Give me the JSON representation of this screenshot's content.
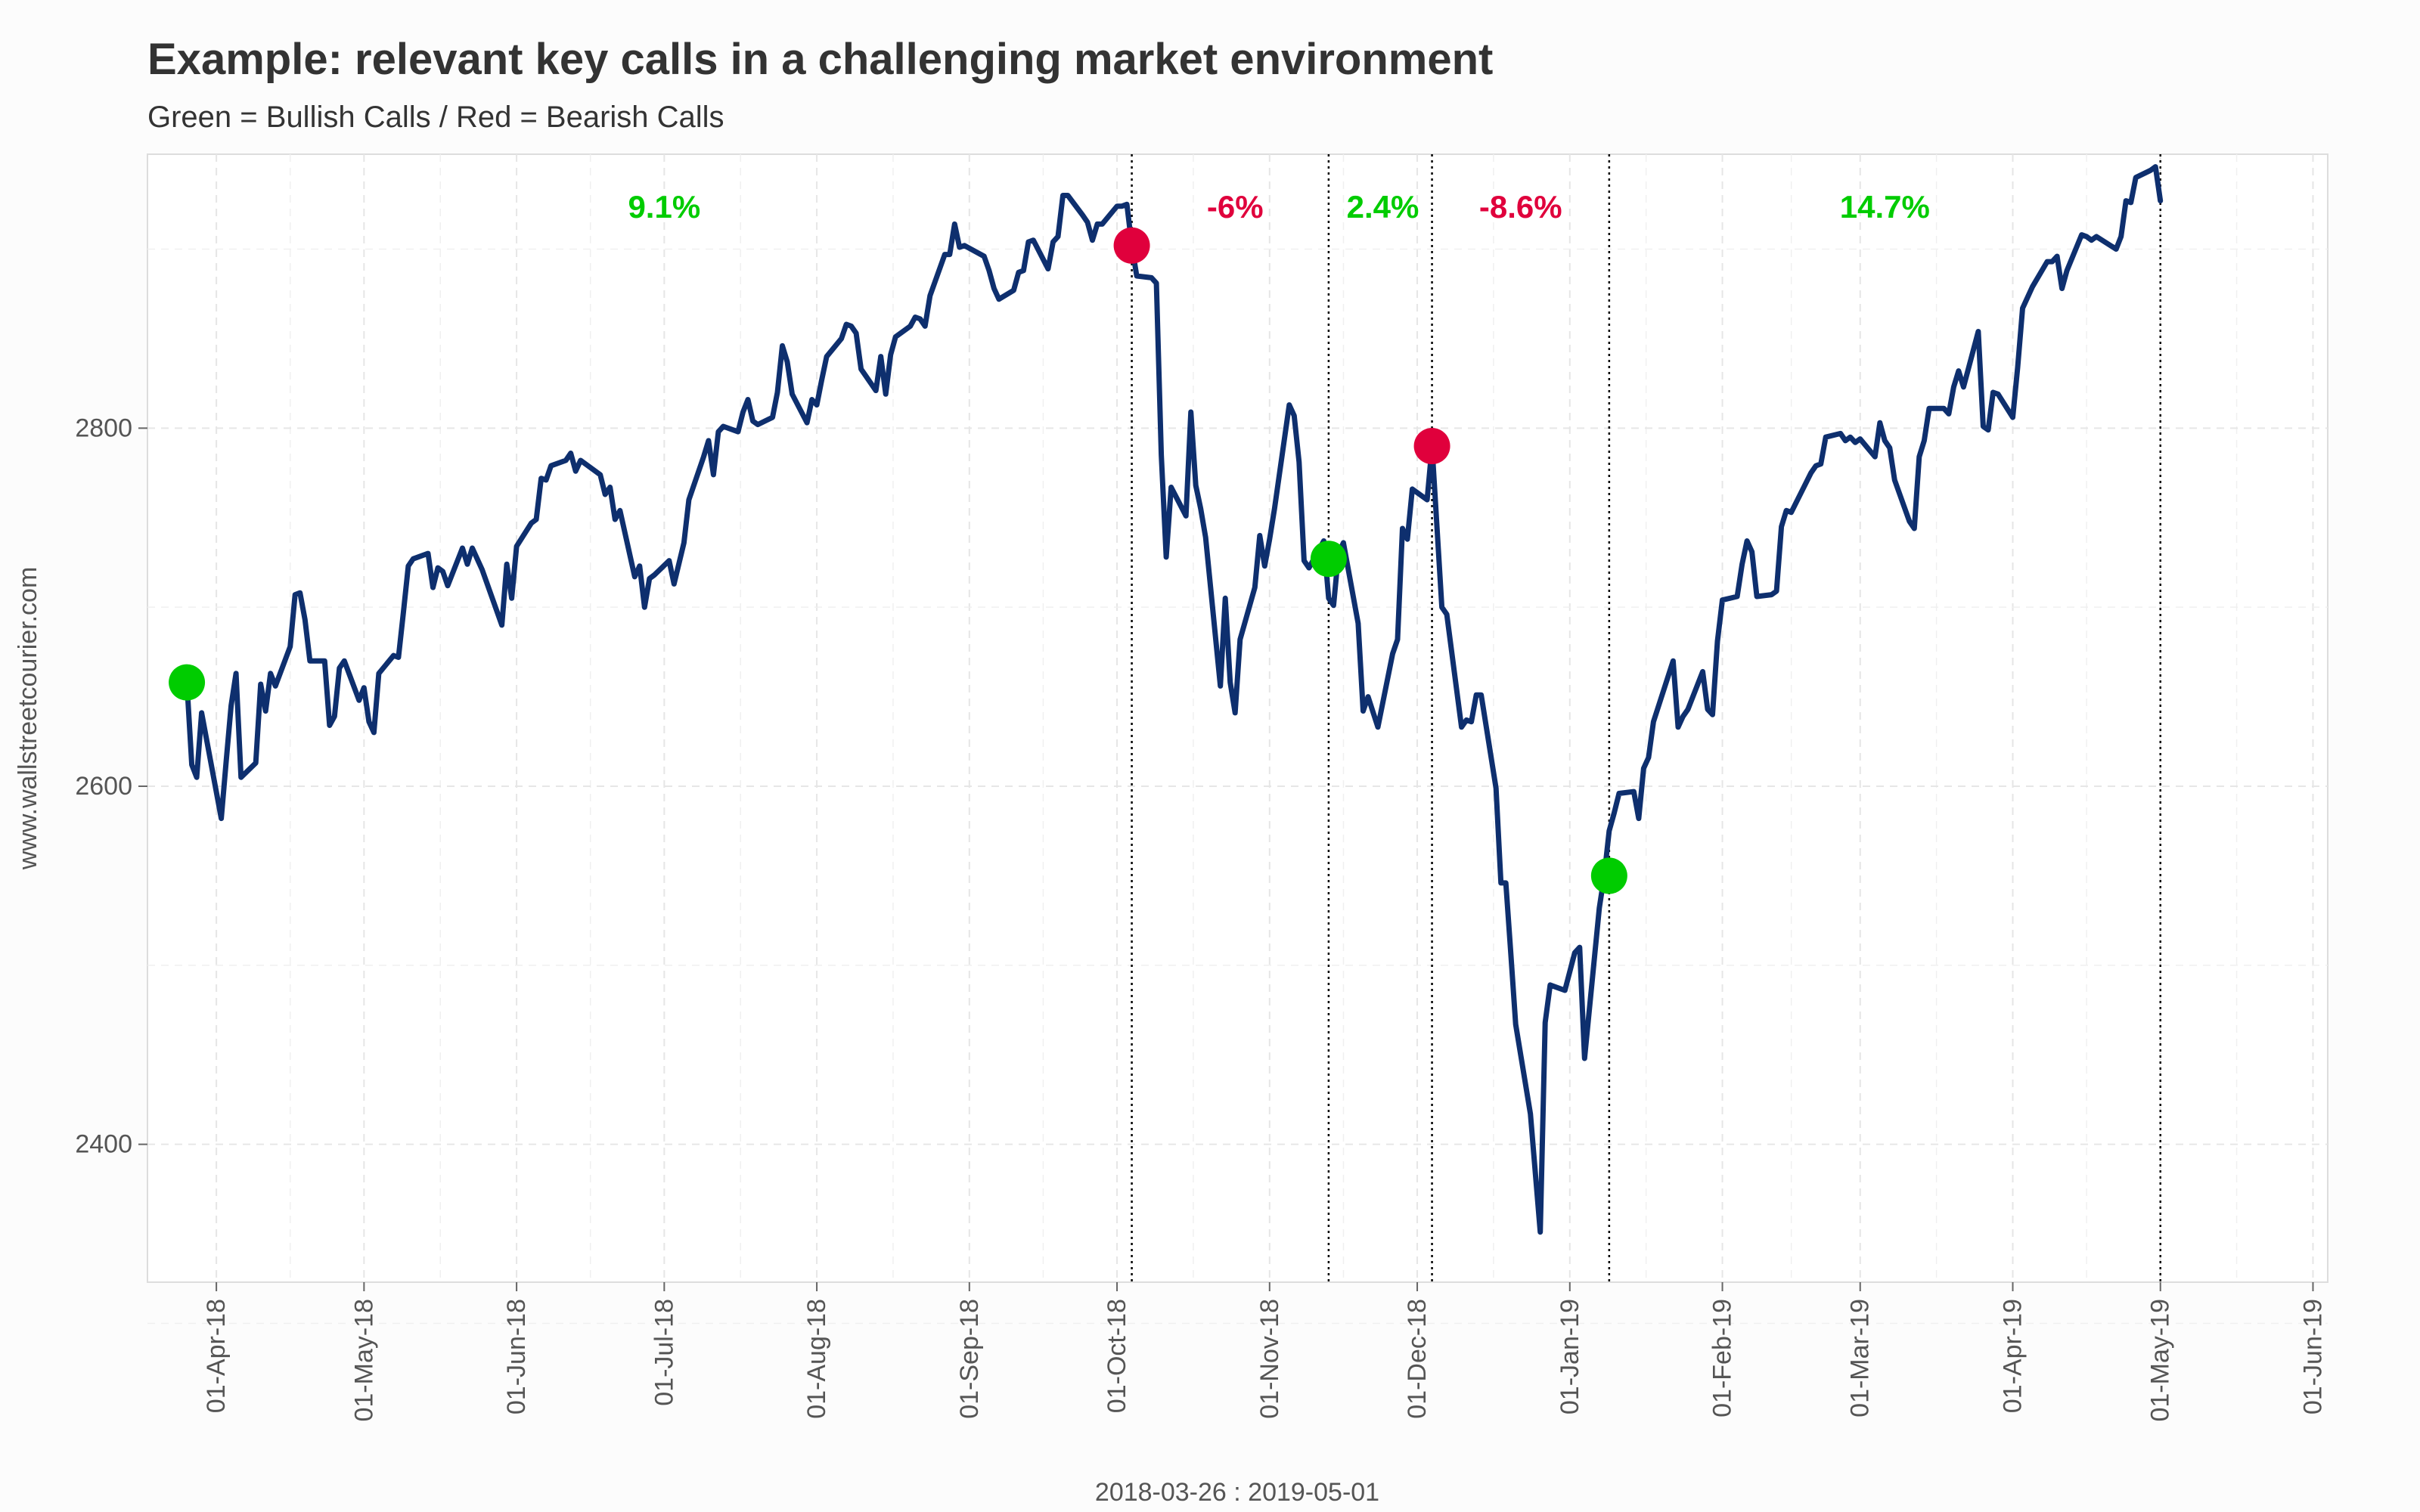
{
  "chart_data": {
    "type": "line",
    "title": "Example: relevant key calls in a challenging market environment",
    "subtitle": "Green = Bullish Calls / Red = Bearish Calls",
    "xlabel": "2018-03-26 : 2019-05-01",
    "ylabel": "www.wallstreetcourier.com",
    "xlim": [
      "2018-03-18",
      "2019-06-04"
    ],
    "ylim": [
      2323,
      2953
    ],
    "x_ticks": [
      {
        "date": "2018-04-01",
        "label": "01-Apr-18"
      },
      {
        "date": "2018-05-01",
        "label": "01-May-18"
      },
      {
        "date": "2018-06-01",
        "label": "01-Jun-18"
      },
      {
        "date": "2018-07-01",
        "label": "01-Jul-18"
      },
      {
        "date": "2018-08-01",
        "label": "01-Aug-18"
      },
      {
        "date": "2018-09-01",
        "label": "01-Sep-18"
      },
      {
        "date": "2018-10-01",
        "label": "01-Oct-18"
      },
      {
        "date": "2018-11-01",
        "label": "01-Nov-18"
      },
      {
        "date": "2018-12-01",
        "label": "01-Dec-18"
      },
      {
        "date": "2019-01-01",
        "label": "01-Jan-19"
      },
      {
        "date": "2019-02-01",
        "label": "01-Feb-19"
      },
      {
        "date": "2019-03-01",
        "label": "01-Mar-19"
      },
      {
        "date": "2019-04-01",
        "label": "01-Apr-19"
      },
      {
        "date": "2019-05-01",
        "label": "01-May-19"
      },
      {
        "date": "2019-06-01",
        "label": "01-Jun-19"
      }
    ],
    "y_ticks": [
      2400,
      2600,
      2800
    ],
    "grid": true,
    "colors": {
      "line": "#0e2f6e",
      "bullish": "#00cc00",
      "bearish": "#e0003c",
      "grid": "#e6e6e6",
      "vline": "#000000"
    },
    "series": [
      {
        "x": [
          "2018-03-26",
          "2018-03-27",
          "2018-03-28",
          "2018-03-29",
          "2018-04-02",
          "2018-04-03",
          "2018-04-04",
          "2018-04-05",
          "2018-04-06",
          "2018-04-09",
          "2018-04-10",
          "2018-04-11",
          "2018-04-12",
          "2018-04-13",
          "2018-04-16",
          "2018-04-17",
          "2018-04-18",
          "2018-04-19",
          "2018-04-20",
          "2018-04-23",
          "2018-04-24",
          "2018-04-25",
          "2018-04-26",
          "2018-04-27",
          "2018-04-30",
          "2018-05-01",
          "2018-05-02",
          "2018-05-03",
          "2018-05-04",
          "2018-05-07",
          "2018-05-08",
          "2018-05-09",
          "2018-05-10",
          "2018-05-11",
          "2018-05-14",
          "2018-05-15",
          "2018-05-16",
          "2018-05-17",
          "2018-05-18",
          "2018-05-21",
          "2018-05-22",
          "2018-05-23",
          "2018-05-24",
          "2018-05-25",
          "2018-05-29",
          "2018-05-30",
          "2018-05-31",
          "2018-06-01",
          "2018-06-04",
          "2018-06-05",
          "2018-06-06",
          "2018-06-07",
          "2018-06-08",
          "2018-06-11",
          "2018-06-12",
          "2018-06-13",
          "2018-06-14",
          "2018-06-15",
          "2018-06-18",
          "2018-06-19",
          "2018-06-20",
          "2018-06-21",
          "2018-06-22",
          "2018-06-25",
          "2018-06-26",
          "2018-06-27",
          "2018-06-28",
          "2018-06-29",
          "2018-07-02",
          "2018-07-03",
          "2018-07-05",
          "2018-07-06",
          "2018-07-09",
          "2018-07-10",
          "2018-07-11",
          "2018-07-12",
          "2018-07-13",
          "2018-07-16",
          "2018-07-17",
          "2018-07-18",
          "2018-07-19",
          "2018-07-20",
          "2018-07-23",
          "2018-07-24",
          "2018-07-25",
          "2018-07-26",
          "2018-07-27",
          "2018-07-30",
          "2018-07-31",
          "2018-08-01",
          "2018-08-02",
          "2018-08-03",
          "2018-08-06",
          "2018-08-07",
          "2018-08-08",
          "2018-08-09",
          "2018-08-10",
          "2018-08-13",
          "2018-08-14",
          "2018-08-15",
          "2018-08-16",
          "2018-08-17",
          "2018-08-20",
          "2018-08-21",
          "2018-08-22",
          "2018-08-23",
          "2018-08-24",
          "2018-08-27",
          "2018-08-28",
          "2018-08-29",
          "2018-08-30",
          "2018-08-31",
          "2018-09-04",
          "2018-09-05",
          "2018-09-06",
          "2018-09-07",
          "2018-09-10",
          "2018-09-11",
          "2018-09-12",
          "2018-09-13",
          "2018-09-14",
          "2018-09-17",
          "2018-09-18",
          "2018-09-19",
          "2018-09-20",
          "2018-09-21",
          "2018-09-24",
          "2018-09-25",
          "2018-09-26",
          "2018-09-27",
          "2018-09-28",
          "2018-10-01",
          "2018-10-02",
          "2018-10-03",
          "2018-10-04",
          "2018-10-05",
          "2018-10-08",
          "2018-10-09",
          "2018-10-10",
          "2018-10-11",
          "2018-10-12",
          "2018-10-15",
          "2018-10-16",
          "2018-10-17",
          "2018-10-18",
          "2018-10-19",
          "2018-10-22",
          "2018-10-23",
          "2018-10-24",
          "2018-10-25",
          "2018-10-26",
          "2018-10-29",
          "2018-10-30",
          "2018-10-31",
          "2018-11-01",
          "2018-11-02",
          "2018-11-05",
          "2018-11-06",
          "2018-11-07",
          "2018-11-08",
          "2018-11-09",
          "2018-11-12",
          "2018-11-13",
          "2018-11-14",
          "2018-11-15",
          "2018-11-16",
          "2018-11-19",
          "2018-11-20",
          "2018-11-21",
          "2018-11-23",
          "2018-11-26",
          "2018-11-27",
          "2018-11-28",
          "2018-11-29",
          "2018-11-30",
          "2018-12-03",
          "2018-12-04",
          "2018-12-06",
          "2018-12-07",
          "2018-12-10",
          "2018-12-11",
          "2018-12-12",
          "2018-12-13",
          "2018-12-14",
          "2018-12-17",
          "2018-12-18",
          "2018-12-19",
          "2018-12-20",
          "2018-12-21",
          "2018-12-24",
          "2018-12-26",
          "2018-12-27",
          "2018-12-28",
          "2018-12-31",
          "2019-01-02",
          "2019-01-03",
          "2019-01-04",
          "2019-01-07",
          "2019-01-08",
          "2019-01-09",
          "2019-01-10",
          "2019-01-11",
          "2019-01-14",
          "2019-01-15",
          "2019-01-16",
          "2019-01-17",
          "2019-01-18",
          "2019-01-22",
          "2019-01-23",
          "2019-01-24",
          "2019-01-25",
          "2019-01-28",
          "2019-01-29",
          "2019-01-30",
          "2019-01-31",
          "2019-02-01",
          "2019-02-04",
          "2019-02-05",
          "2019-02-06",
          "2019-02-07",
          "2019-02-08",
          "2019-02-11",
          "2019-02-12",
          "2019-02-13",
          "2019-02-14",
          "2019-02-15",
          "2019-02-19",
          "2019-02-20",
          "2019-02-21",
          "2019-02-22",
          "2019-02-25",
          "2019-02-26",
          "2019-02-27",
          "2019-02-28",
          "2019-03-01",
          "2019-03-04",
          "2019-03-05",
          "2019-03-06",
          "2019-03-07",
          "2019-03-08",
          "2019-03-11",
          "2019-03-12",
          "2019-03-13",
          "2019-03-14",
          "2019-03-15",
          "2019-03-18",
          "2019-03-19",
          "2019-03-20",
          "2019-03-21",
          "2019-03-22",
          "2019-03-25",
          "2019-03-26",
          "2019-03-27",
          "2019-03-28",
          "2019-03-29",
          "2019-04-01",
          "2019-04-02",
          "2019-04-03",
          "2019-04-04",
          "2019-04-05",
          "2019-04-08",
          "2019-04-09",
          "2019-04-10",
          "2019-04-11",
          "2019-04-12",
          "2019-04-15",
          "2019-04-16",
          "2019-04-17",
          "2019-04-18",
          "2019-04-22",
          "2019-04-23",
          "2019-04-24",
          "2019-04-25",
          "2019-04-26",
          "2019-04-29",
          "2019-04-30",
          "2019-05-01"
        ],
        "y": [
          2658,
          2612,
          2605,
          2641,
          2582,
          2614,
          2645,
          2663,
          2605,
          2613,
          2657,
          2642,
          2663,
          2656,
          2678,
          2707,
          2708,
          2693,
          2670,
          2670,
          2634,
          2639,
          2666,
          2670,
          2648,
          2655,
          2636,
          2630,
          2663,
          2673,
          2672,
          2697,
          2723,
          2727,
          2730,
          2711,
          2722,
          2720,
          2712,
          2733,
          2724,
          2733,
          2727,
          2721,
          2690,
          2724,
          2705,
          2734,
          2747,
          2749,
          2772,
          2771,
          2779,
          2782,
          2786,
          2776,
          2782,
          2780,
          2774,
          2763,
          2767,
          2749,
          2754,
          2717,
          2723,
          2700,
          2716,
          2718,
          2726,
          2713,
          2736,
          2760,
          2784,
          2793,
          2774,
          2798,
          2801,
          2798,
          2809,
          2816,
          2804,
          2802,
          2806,
          2820,
          2846,
          2837,
          2819,
          2803,
          2816,
          2813,
          2827,
          2840,
          2850,
          2858,
          2857,
          2853,
          2833,
          2821,
          2840,
          2819,
          2841,
          2851,
          2857,
          2862,
          2861,
          2857,
          2874,
          2897,
          2897,
          2914,
          2901,
          2902,
          2896,
          2888,
          2878,
          2872,
          2877,
          2887,
          2888,
          2904,
          2905,
          2889,
          2904,
          2907,
          2930,
          2930,
          2919,
          2915,
          2905,
          2914,
          2914,
          2924,
          2924,
          2925,
          2902,
          2885,
          2884,
          2881,
          2785,
          2728,
          2767,
          2751,
          2809,
          2768,
          2755,
          2739,
          2656,
          2705,
          2658,
          2641,
          2682,
          2711,
          2740,
          2723,
          2738,
          2755,
          2813,
          2807,
          2781,
          2726,
          2722,
          2737,
          2705,
          2701,
          2730,
          2736,
          2691,
          2642,
          2650,
          2633,
          2674,
          2682,
          2744,
          2738,
          2766,
          2760,
          2790,
          2700,
          2696,
          2633,
          2637,
          2636,
          2651,
          2651,
          2599,
          2546,
          2546,
          2507,
          2467,
          2417,
          2351,
          2468,
          2489,
          2486,
          2507,
          2510,
          2448,
          2532,
          2550,
          2575,
          2585,
          2596,
          2597,
          2582,
          2610,
          2616,
          2636,
          2670,
          2633,
          2639,
          2643,
          2664,
          2643,
          2640,
          2681,
          2704,
          2706,
          2724,
          2737,
          2731,
          2706,
          2707,
          2709,
          2745,
          2754,
          2753,
          2775,
          2779,
          2780,
          2795,
          2797,
          2793,
          2795,
          2792,
          2794,
          2784,
          2803,
          2793,
          2789,
          2771,
          2748,
          2744,
          2784,
          2793,
          2811,
          2811,
          2808,
          2823,
          2832,
          2823,
          2854,
          2801,
          2799,
          2820,
          2819,
          2806,
          2834,
          2867,
          2873,
          2879,
          2893,
          2893,
          2896,
          2878,
          2888,
          2908,
          2907,
          2905,
          2907,
          2900,
          2907,
          2927,
          2926,
          2940,
          2944,
          2946,
          2927
        ]
      }
    ],
    "calls": [
      {
        "date": "2018-03-26",
        "value": 2658,
        "type": "bullish"
      },
      {
        "date": "2018-10-04",
        "value": 2902,
        "type": "bearish"
      },
      {
        "date": "2018-11-13",
        "value": 2727,
        "type": "bullish"
      },
      {
        "date": "2018-12-04",
        "value": 2790,
        "type": "bearish"
      },
      {
        "date": "2019-01-09",
        "value": 2550,
        "type": "bullish"
      }
    ],
    "vlines": [
      "2018-10-04",
      "2018-11-13",
      "2018-12-04",
      "2019-01-09",
      "2019-05-01"
    ],
    "annotations": [
      {
        "date": "2018-07-01",
        "text": "9.1%",
        "type": "bullish"
      },
      {
        "date": "2018-10-25",
        "text": "-6%",
        "type": "bearish"
      },
      {
        "date": "2018-11-24",
        "text": "2.4%",
        "type": "bullish"
      },
      {
        "date": "2018-12-22",
        "text": "-8.6%",
        "type": "bearish"
      },
      {
        "date": "2019-03-06",
        "text": "14.7%",
        "type": "bullish"
      }
    ]
  }
}
